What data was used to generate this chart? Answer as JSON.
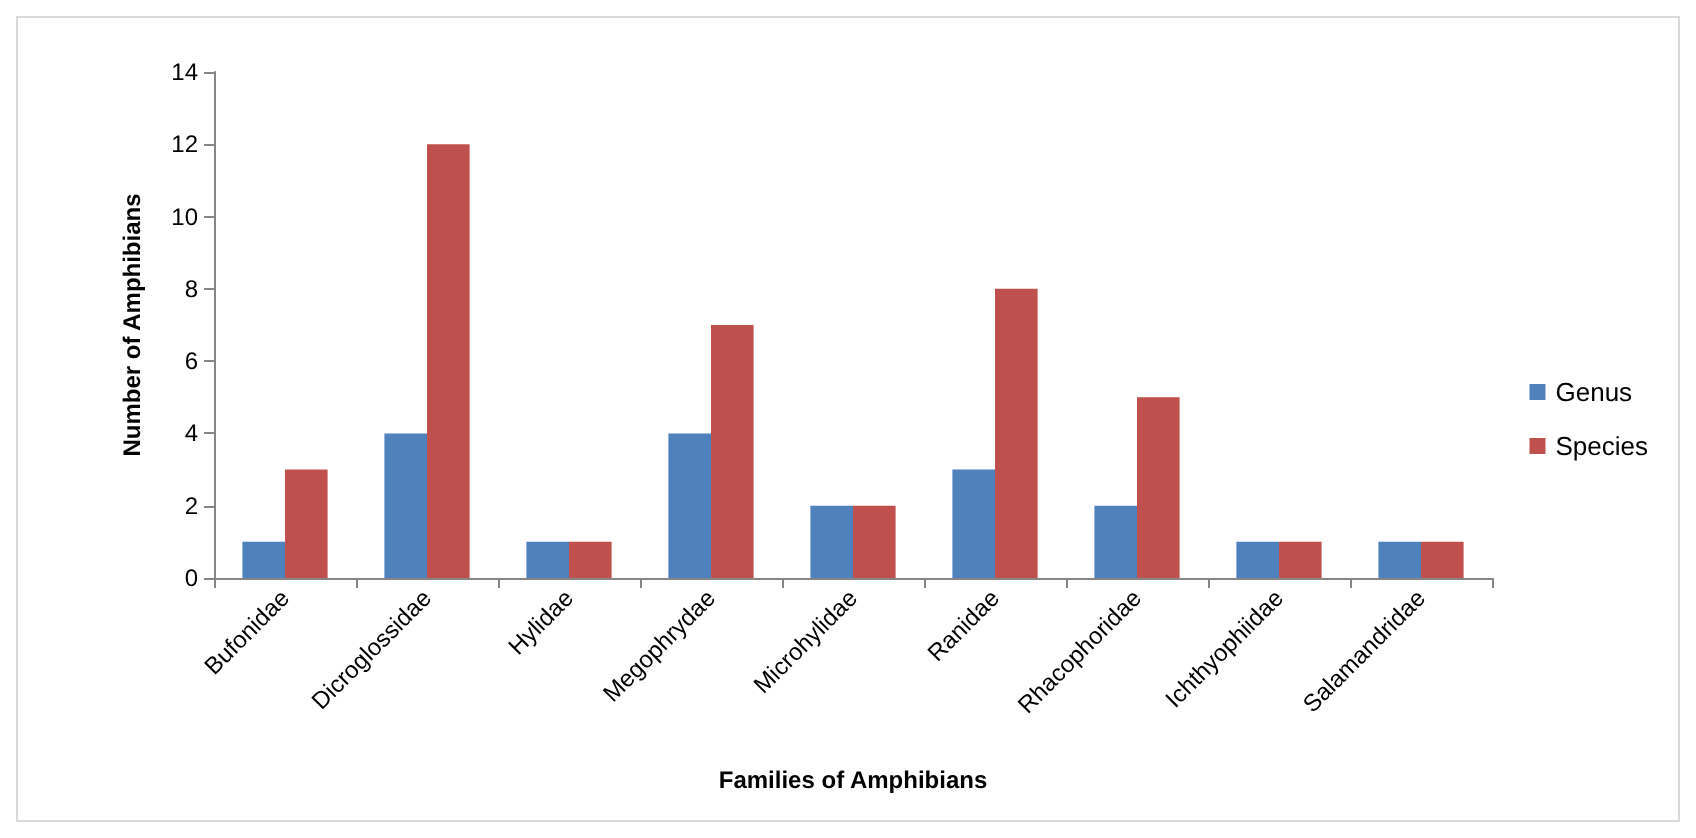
{
  "chart_data": {
    "type": "bar",
    "xlabel": "Families of Amphibians",
    "ylabel": "Number of Amphibians",
    "categories": [
      "Bufonidae",
      "Dicroglossidae",
      "Hylidae",
      "Megophrydae",
      "Microhylidae",
      "Ranidae",
      "Rhacophoridae",
      "Ichthyophiidae",
      "Salamandridae"
    ],
    "series": [
      {
        "name": "Genus",
        "color": "#4f81bd",
        "values": [
          1,
          4,
          1,
          4,
          2,
          3,
          2,
          1,
          1
        ]
      },
      {
        "name": "Species",
        "color": "#c0504d",
        "values": [
          3,
          12,
          1,
          7,
          2,
          8,
          5,
          1,
          1
        ]
      }
    ],
    "ylim": [
      0,
      14
    ],
    "yticks": [
      0,
      2,
      4,
      6,
      8,
      10,
      12,
      14
    ],
    "grid": false,
    "legend": "right"
  }
}
